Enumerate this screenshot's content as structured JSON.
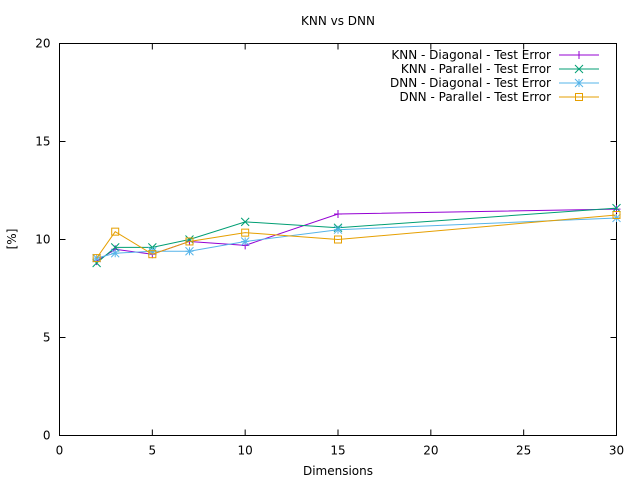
{
  "chart_data": {
    "type": "line",
    "title": "KNN vs DNN",
    "xlabel": "Dimensions",
    "ylabel": "[%]",
    "xlim": [
      0,
      30
    ],
    "ylim": [
      0,
      20
    ],
    "xticks": [
      0,
      5,
      10,
      15,
      20,
      25,
      30
    ],
    "yticks": [
      0,
      5,
      10,
      15,
      20
    ],
    "grid": false,
    "legend_position": "top-right",
    "series": [
      {
        "name": "KNN - Diagonal - Test Error",
        "color": "#9400d3",
        "marker": "plus",
        "x": [
          2,
          3,
          5,
          7,
          10,
          15,
          30
        ],
        "y": [
          8.9,
          9.5,
          9.25,
          9.9,
          9.7,
          11.3,
          11.55
        ]
      },
      {
        "name": "KNN - Parallel - Test Error",
        "color": "#009e73",
        "marker": "cross",
        "x": [
          2,
          3,
          5,
          7,
          10,
          15,
          30
        ],
        "y": [
          8.8,
          9.6,
          9.6,
          10.0,
          10.9,
          10.6,
          11.6
        ]
      },
      {
        "name": "DNN - Diagonal - Test Error",
        "color": "#56b4e9",
        "marker": "star",
        "x": [
          2,
          3,
          5,
          7,
          10,
          15,
          30
        ],
        "y": [
          9.05,
          9.3,
          9.4,
          9.4,
          9.9,
          10.5,
          11.1
        ]
      },
      {
        "name": "DNN - Parallel - Test Error",
        "color": "#e69f00",
        "marker": "square",
        "x": [
          2,
          3,
          5,
          7,
          10,
          15,
          30
        ],
        "y": [
          9.05,
          10.4,
          9.25,
          9.9,
          10.35,
          10.0,
          11.25
        ]
      }
    ]
  }
}
